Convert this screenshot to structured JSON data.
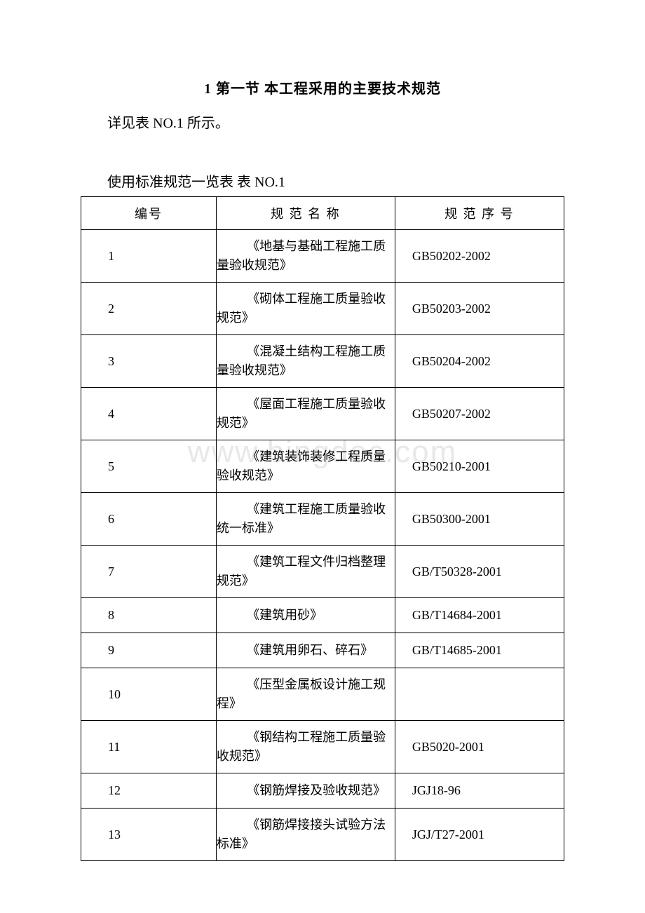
{
  "section_title": "1 第一节 本工程采用的主要技术规范",
  "intro_text": "详见表 NO.1 所示。",
  "table_caption": "使用标准规范一览表 表 NO.1",
  "watermark_text": "www.bingdoc.com",
  "table": {
    "headers": {
      "col1": "编号",
      "col2": "规 范 名 称",
      "col3": "规 范 序 号"
    },
    "rows": [
      {
        "num": "1",
        "name": "《地基与基础工程施工质量验收规范》",
        "code": "GB50202-2002"
      },
      {
        "num": "2",
        "name": "《砌体工程施工质量验收规范》",
        "code": "GB50203-2002"
      },
      {
        "num": "3",
        "name": "《混凝土结构工程施工质量验收规范》",
        "code": "GB50204-2002"
      },
      {
        "num": "4",
        "name": "《屋面工程施工质量验收规范》",
        "code": "GB50207-2002"
      },
      {
        "num": "5",
        "name": "《建筑装饰装修工程质量验收规范》",
        "code": "GB50210-2001"
      },
      {
        "num": "6",
        "name": "《建筑工程施工质量验收统一标准》",
        "code": "GB50300-2001"
      },
      {
        "num": "7",
        "name": "《建筑工程文件归档整理规范》",
        "code": "GB/T50328-2001"
      },
      {
        "num": "8",
        "name": "《建筑用砂》",
        "code": "GB/T14684-2001"
      },
      {
        "num": "9",
        "name": "《建筑用卵石、碎石》",
        "code": "GB/T14685-2001"
      },
      {
        "num": "10",
        "name": "《压型金属板设计施工规程》",
        "code": ""
      },
      {
        "num": "11",
        "name": "《钢结构工程施工质量验收规范》",
        "code": "GB5020-2001"
      },
      {
        "num": "12",
        "name": "《钢筋焊接及验收规范》",
        "code": "JGJ18-96"
      },
      {
        "num": "13",
        "name": "《钢筋焊接接头试验方法标准》",
        "code": "JGJ/T27-2001"
      }
    ]
  }
}
